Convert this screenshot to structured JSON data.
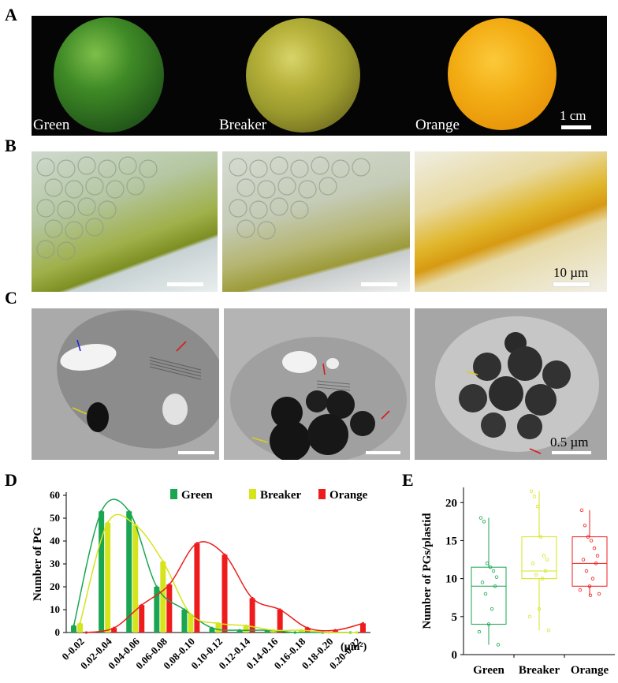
{
  "panels": {
    "a": {
      "letter": "A",
      "labels": [
        "Green",
        "Breaker",
        "Orange"
      ],
      "scale": "1 cm"
    },
    "b": {
      "letter": "B",
      "scale": "10 µm"
    },
    "c": {
      "letter": "C",
      "scale": "0.5 µm"
    },
    "d": {
      "letter": "D"
    },
    "e": {
      "letter": "E"
    }
  },
  "colors": {
    "green": "#1aa651",
    "breaker": "#d6e41c",
    "orange": "#ee1c1c"
  },
  "chart_data": [
    {
      "type": "bar",
      "ylabel": "Number of PG",
      "xlabel": "(µm²)",
      "ylim": [
        0,
        60
      ],
      "yticks": [
        0,
        10,
        20,
        30,
        40,
        50,
        60
      ],
      "legend": "top-right",
      "grid": false,
      "categories": [
        "0-0.02",
        "0.02-0.04",
        "0.04-0.06",
        "0.06-0.08",
        "0.08-0.10",
        "0.10-0.12",
        "0.12-0.14",
        "0.14-0.16",
        "0.16-0.18",
        "0.18-0.20",
        "0.20-0.22"
      ],
      "series": [
        {
          "name": "Green",
          "values": [
            3,
            53,
            53,
            20,
            10,
            2,
            1,
            1,
            0,
            0,
            0
          ]
        },
        {
          "name": "Breaker",
          "values": [
            4,
            48,
            47,
            31,
            8,
            4,
            3,
            1,
            1,
            0,
            0
          ]
        },
        {
          "name": "Orange",
          "values": [
            0,
            2,
            12,
            21,
            39,
            34,
            15,
            10,
            2,
            1,
            4
          ]
        }
      ]
    },
    {
      "type": "box",
      "ylabel": "Number of PGs/plastid",
      "ylim": [
        0,
        22
      ],
      "yticks": [
        0,
        5,
        10,
        15,
        20
      ],
      "grid": false,
      "categories": [
        "Green",
        "Breaker",
        "Orange"
      ],
      "series": [
        {
          "name": "Green",
          "min": 1.3,
          "q1": 4,
          "median": 9,
          "q3": 11.5,
          "max": 18,
          "points": [
            18,
            17.5,
            12,
            11.5,
            11,
            10.2,
            9.5,
            9,
            8,
            6,
            4,
            3,
            1.3
          ]
        },
        {
          "name": "Breaker",
          "min": 3.2,
          "q1": 10,
          "median": 11,
          "q3": 15.5,
          "max": 21.5,
          "points": [
            21.5,
            20.8,
            19.5,
            15.5,
            13,
            12.5,
            12,
            11,
            10.5,
            10,
            6,
            5,
            3.2
          ]
        },
        {
          "name": "Orange",
          "min": 7.8,
          "q1": 9,
          "median": 12,
          "q3": 15.5,
          "max": 19,
          "points": [
            19,
            17,
            15.5,
            15,
            14,
            13,
            12.5,
            12,
            11,
            10,
            9,
            8.5,
            8,
            7.8
          ]
        }
      ]
    }
  ]
}
